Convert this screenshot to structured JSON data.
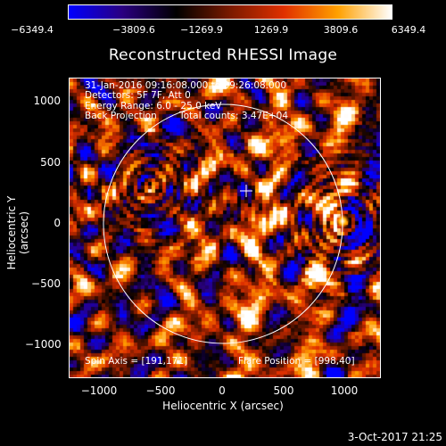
{
  "colorbar": {
    "ticks": [
      "−6349.4",
      "−3809.6",
      "−1269.9",
      "1269.9",
      "3809.6",
      "6349.4"
    ],
    "colors": [
      "#0000ff",
      "#2a0080",
      "#000000",
      "#7a1a00",
      "#e03000",
      "#ffa000",
      "#ffffff"
    ]
  },
  "title": "Reconstructed RHESSI Image",
  "annotations": {
    "time": "31-Jan-2016 09:16:08.000 to 09:26:08.000",
    "detectors": "Detectors: 5F 7F, Att 0",
    "energy": "Energy Range: 6.0 - 25.0 keV",
    "method": "Back Projection",
    "counts": "Total counts: 3.47E+04",
    "spin_axis": "Spin Axis = [191,171]",
    "flare_position": "Flare Position = [998,40]"
  },
  "axes": {
    "xlabel": "Heliocentric X (arcsec)",
    "ylabel": "Heliocentric Y (arcsec)",
    "xticks": [
      "−1000",
      "−500",
      "0",
      "500",
      "1000"
    ],
    "yticks": [
      "1000",
      "500",
      "0",
      "−500",
      "−1000"
    ]
  },
  "timestamp": "3-Oct-2017 21:25"
}
